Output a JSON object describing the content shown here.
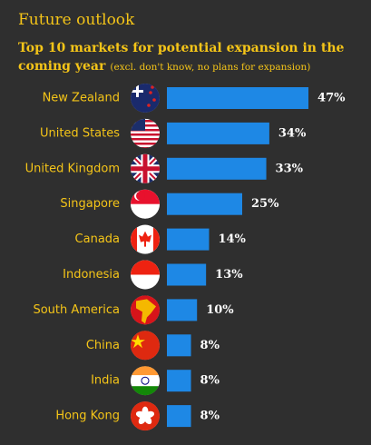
{
  "chart_data": {
    "type": "bar",
    "orientation": "horizontal",
    "title": "Future outlook",
    "subtitle": "Top 10 markets for potential expansion in the coming year",
    "note": "(excl. don't know, no plans for expansion)",
    "categories": [
      "New Zealand",
      "United States",
      "United Kingdom",
      "Singapore",
      "Canada",
      "Indonesia",
      "South America",
      "China",
      "India",
      "Hong Kong"
    ],
    "values": [
      47,
      34,
      33,
      25,
      14,
      13,
      10,
      8,
      8,
      8
    ],
    "value_labels": [
      "47%",
      "34%",
      "33%",
      "25%",
      "14%",
      "13%",
      "10%",
      "8%",
      "8%",
      "8%"
    ],
    "color": "#1e88e5"
  }
}
